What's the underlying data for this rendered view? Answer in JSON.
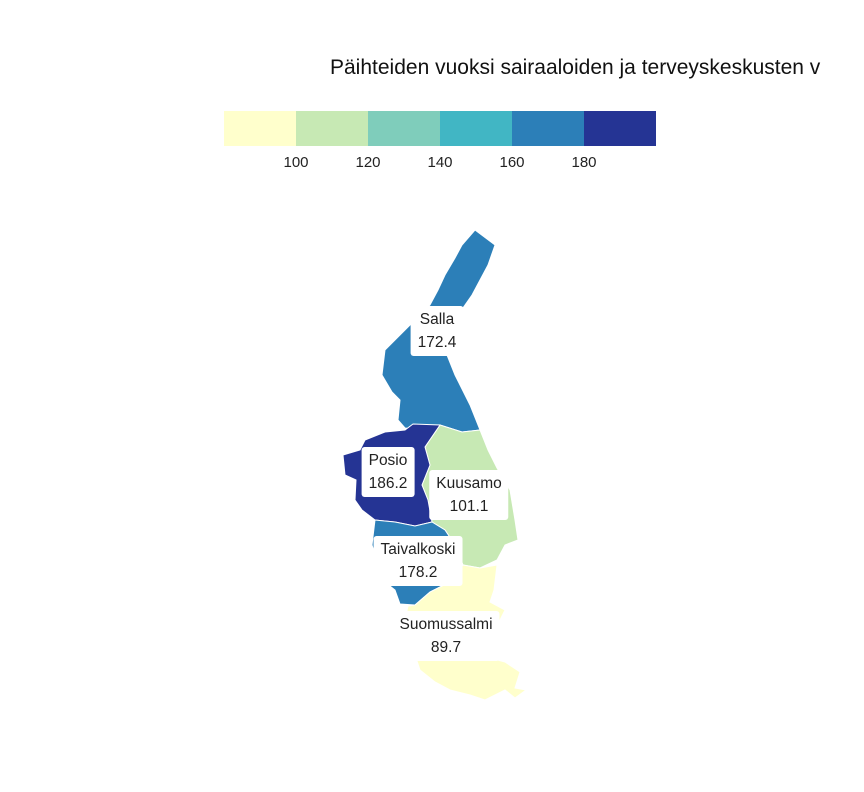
{
  "title": "Päihteiden vuoksi sairaaloiden ja terveyskeskusten v",
  "legend": {
    "bins": [
      {
        "color": "#ffffcc"
      },
      {
        "color": "#c7e9b4"
      },
      {
        "color": "#7fcdbb"
      },
      {
        "color": "#41b6c4"
      },
      {
        "color": "#2c7fb8"
      },
      {
        "color": "#253494"
      }
    ],
    "ticks": [
      "100",
      "120",
      "140",
      "160",
      "180"
    ]
  },
  "regions": [
    {
      "name": "Salla",
      "value": "172.4",
      "color": "#2c7fb8"
    },
    {
      "name": "Posio",
      "value": "186.2",
      "color": "#253494"
    },
    {
      "name": "Kuusamo",
      "value": "101.1",
      "color": "#c7e9b4"
    },
    {
      "name": "Taivalkoski",
      "value": "178.2",
      "color": "#2c7fb8"
    },
    {
      "name": "Suomussalmi",
      "value": "89.7",
      "color": "#ffffcc"
    }
  ]
}
